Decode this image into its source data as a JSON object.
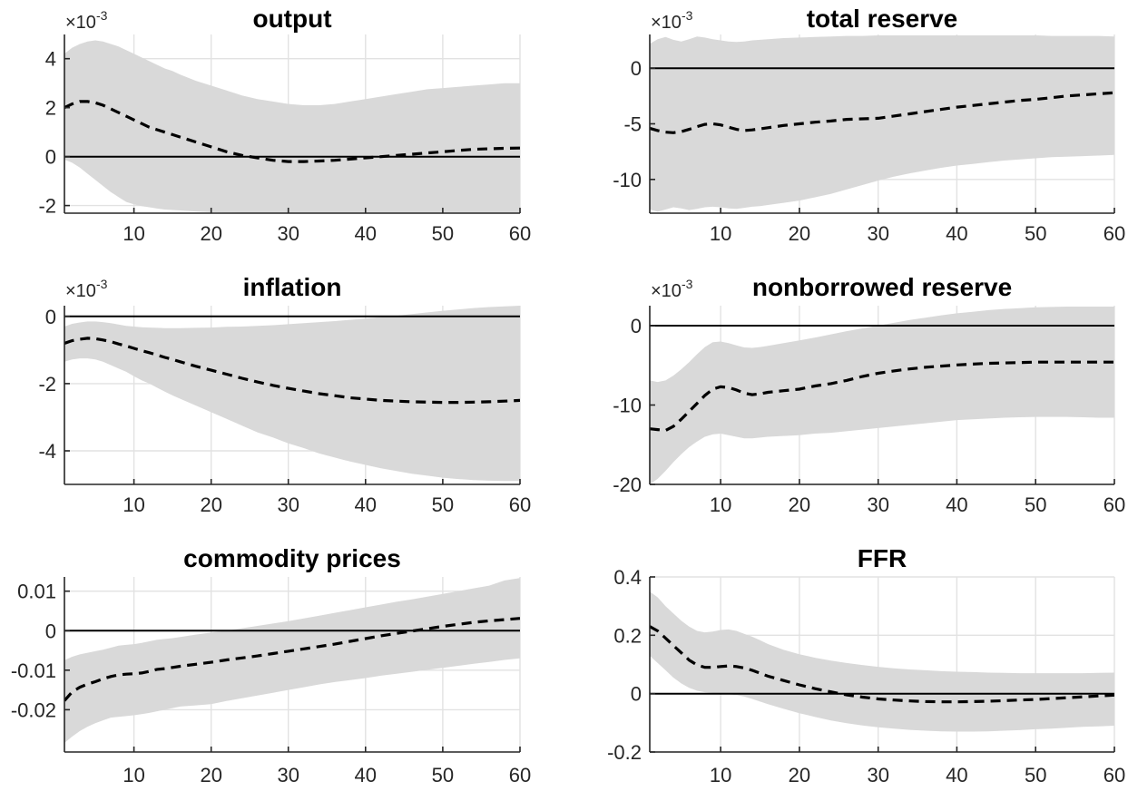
{
  "figure": {
    "background": "#ffffff",
    "band_color": "#d9d9d9",
    "grid_color": "#e2e2e2",
    "axis_color": "#262626",
    "line_color": "#000000",
    "zero_line_color": "#000000"
  },
  "chart_data": [
    {
      "type": "line",
      "title": "output",
      "scale_label": {
        "base": "×10",
        "exponent": "-3"
      },
      "xlim": [
        1,
        60
      ],
      "ylim": [
        -2.31,
        4.99
      ],
      "xticks": [
        10,
        20,
        30,
        40,
        50,
        60
      ],
      "yticks": {
        "values": [
          4,
          2,
          0,
          -2
        ],
        "labels": [
          "4",
          "2",
          "0",
          "-2"
        ]
      },
      "zero_line": true,
      "grid": true,
      "x": [
        1,
        2,
        3,
        4,
        5,
        6,
        7,
        8,
        9,
        10,
        11,
        12,
        13,
        14,
        15,
        16,
        18,
        20,
        22,
        24,
        26,
        28,
        30,
        32,
        34,
        36,
        38,
        40,
        42,
        44,
        46,
        48,
        50,
        52,
        54,
        56,
        58,
        60
      ],
      "median": [
        2.0,
        2.15,
        2.25,
        2.25,
        2.2,
        2.1,
        1.95,
        1.8,
        1.65,
        1.5,
        1.35,
        1.2,
        1.1,
        1.0,
        0.9,
        0.8,
        0.6,
        0.4,
        0.2,
        0.05,
        -0.05,
        -0.15,
        -0.2,
        -0.2,
        -0.18,
        -0.15,
        -0.1,
        -0.05,
        0.0,
        0.05,
        0.1,
        0.15,
        0.2,
        0.25,
        0.3,
        0.32,
        0.34,
        0.35
      ],
      "band_upper": [
        4.2,
        4.45,
        4.6,
        4.7,
        4.75,
        4.7,
        4.6,
        4.5,
        4.35,
        4.2,
        4.05,
        3.9,
        3.75,
        3.6,
        3.5,
        3.35,
        3.1,
        2.9,
        2.7,
        2.5,
        2.35,
        2.25,
        2.15,
        2.1,
        2.1,
        2.15,
        2.25,
        2.35,
        2.45,
        2.55,
        2.65,
        2.75,
        2.8,
        2.85,
        2.9,
        2.95,
        3.0,
        3.0
      ],
      "band_lower": [
        -0.12,
        -0.25,
        -0.45,
        -0.7,
        -0.95,
        -1.2,
        -1.45,
        -1.65,
        -1.85,
        -1.95,
        -2.02,
        -2.07,
        -2.12,
        -2.16,
        -2.18,
        -2.2,
        -2.24,
        -2.27,
        -2.28,
        -2.29,
        -2.29,
        -2.3,
        -2.3,
        -2.3,
        -2.3,
        -2.3,
        -2.3,
        -2.3,
        -2.3,
        -2.3,
        -2.3,
        -2.3,
        -2.3,
        -2.3,
        -2.3,
        -2.3,
        -2.3,
        -2.3
      ]
    },
    {
      "type": "line",
      "title": "total reserve",
      "scale_label": {
        "base": "×10",
        "exponent": "-3"
      },
      "xlim": [
        1,
        60
      ],
      "ylim": [
        -13.03,
        3.03
      ],
      "xticks": [
        10,
        20,
        30,
        40,
        50,
        60
      ],
      "yticks": {
        "values": [
          0,
          -5,
          -10
        ],
        "labels": [
          "0",
          "-5",
          "-10"
        ]
      },
      "zero_line": true,
      "grid": true,
      "x": [
        1,
        2,
        3,
        4,
        5,
        6,
        7,
        8,
        9,
        10,
        11,
        12,
        13,
        14,
        15,
        16,
        18,
        20,
        22,
        24,
        26,
        28,
        30,
        32,
        34,
        36,
        38,
        40,
        42,
        44,
        46,
        48,
        50,
        52,
        54,
        56,
        58,
        60
      ],
      "median": [
        -5.4,
        -5.6,
        -5.75,
        -5.8,
        -5.7,
        -5.5,
        -5.25,
        -5.05,
        -5.0,
        -5.1,
        -5.3,
        -5.5,
        -5.6,
        -5.55,
        -5.45,
        -5.35,
        -5.15,
        -5.0,
        -4.85,
        -4.75,
        -4.6,
        -4.55,
        -4.5,
        -4.3,
        -4.1,
        -3.9,
        -3.7,
        -3.5,
        -3.35,
        -3.2,
        -3.05,
        -2.9,
        -2.8,
        -2.65,
        -2.5,
        -2.4,
        -2.3,
        -2.2
      ],
      "band_upper": [
        2.2,
        2.6,
        2.8,
        2.55,
        2.4,
        2.6,
        2.85,
        2.75,
        2.6,
        2.5,
        2.4,
        2.35,
        2.4,
        2.5,
        2.55,
        2.6,
        2.7,
        2.75,
        2.8,
        2.85,
        2.9,
        2.9,
        2.95,
        2.95,
        2.95,
        2.95,
        2.95,
        2.95,
        2.95,
        2.95,
        2.95,
        2.95,
        2.95,
        2.9,
        2.9,
        2.9,
        2.9,
        2.85
      ],
      "band_lower": [
        -12.7,
        -12.9,
        -12.7,
        -12.5,
        -12.6,
        -12.75,
        -12.65,
        -12.5,
        -12.45,
        -12.5,
        -12.6,
        -12.65,
        -12.55,
        -12.45,
        -12.4,
        -12.3,
        -12.1,
        -11.9,
        -11.6,
        -11.3,
        -10.9,
        -10.5,
        -10.1,
        -9.75,
        -9.45,
        -9.2,
        -8.95,
        -8.75,
        -8.6,
        -8.45,
        -8.3,
        -8.2,
        -8.1,
        -8.0,
        -7.95,
        -7.9,
        -7.85,
        -7.8
      ]
    },
    {
      "type": "line",
      "title": "inflation",
      "scale_label": {
        "base": "×10",
        "exponent": "-3"
      },
      "xlim": [
        1,
        60
      ],
      "ylim": [
        -5.0,
        0.32
      ],
      "xticks": [
        10,
        20,
        30,
        40,
        50,
        60
      ],
      "yticks": {
        "values": [
          0,
          -2,
          -4
        ],
        "labels": [
          "0",
          "-2",
          "-4"
        ]
      },
      "zero_line": true,
      "grid": true,
      "x": [
        1,
        2,
        3,
        4,
        5,
        6,
        7,
        8,
        9,
        10,
        11,
        12,
        13,
        14,
        15,
        16,
        18,
        20,
        22,
        24,
        26,
        28,
        30,
        32,
        34,
        36,
        38,
        40,
        42,
        44,
        46,
        48,
        50,
        52,
        54,
        56,
        58,
        60
      ],
      "median": [
        -0.8,
        -0.72,
        -0.68,
        -0.65,
        -0.66,
        -0.7,
        -0.75,
        -0.82,
        -0.88,
        -0.95,
        -1.02,
        -1.08,
        -1.15,
        -1.22,
        -1.28,
        -1.35,
        -1.48,
        -1.6,
        -1.72,
        -1.84,
        -1.95,
        -2.05,
        -2.14,
        -2.22,
        -2.3,
        -2.36,
        -2.42,
        -2.46,
        -2.5,
        -2.52,
        -2.54,
        -2.55,
        -2.56,
        -2.56,
        -2.55,
        -2.54,
        -2.52,
        -2.5
      ],
      "band_upper": [
        -0.3,
        -0.22,
        -0.18,
        -0.15,
        -0.15,
        -0.17,
        -0.2,
        -0.24,
        -0.28,
        -0.3,
        -0.32,
        -0.33,
        -0.34,
        -0.35,
        -0.35,
        -0.35,
        -0.34,
        -0.33,
        -0.31,
        -0.3,
        -0.28,
        -0.26,
        -0.23,
        -0.2,
        -0.17,
        -0.14,
        -0.1,
        -0.06,
        -0.02,
        0.02,
        0.07,
        0.12,
        0.17,
        0.21,
        0.25,
        0.28,
        0.3,
        0.32
      ],
      "band_lower": [
        -1.35,
        -1.28,
        -1.25,
        -1.25,
        -1.28,
        -1.35,
        -1.45,
        -1.55,
        -1.65,
        -1.78,
        -1.9,
        -2.0,
        -2.12,
        -2.24,
        -2.35,
        -2.45,
        -2.65,
        -2.85,
        -3.05,
        -3.25,
        -3.45,
        -3.6,
        -3.78,
        -3.92,
        -4.08,
        -4.2,
        -4.32,
        -4.42,
        -4.52,
        -4.6,
        -4.68,
        -4.74,
        -4.8,
        -4.84,
        -4.87,
        -4.89,
        -4.9,
        -4.9
      ]
    },
    {
      "type": "line",
      "title": "nonborrowed reserve",
      "scale_label": {
        "base": "×10",
        "exponent": "-3"
      },
      "xlim": [
        1,
        60
      ],
      "ylim": [
        -20.0,
        2.51
      ],
      "xticks": [
        10,
        20,
        30,
        40,
        50,
        60
      ],
      "yticks": {
        "values": [
          0,
          -10,
          -20
        ],
        "labels": [
          "0",
          "-10",
          "-20"
        ]
      },
      "zero_line": true,
      "grid": true,
      "x": [
        1,
        2,
        3,
        4,
        5,
        6,
        7,
        8,
        9,
        10,
        11,
        12,
        13,
        14,
        15,
        16,
        18,
        20,
        22,
        24,
        26,
        28,
        30,
        32,
        34,
        36,
        38,
        40,
        42,
        44,
        46,
        48,
        50,
        52,
        54,
        56,
        58,
        60
      ],
      "median": [
        -13.0,
        -13.1,
        -13.2,
        -12.7,
        -11.8,
        -10.8,
        -9.8,
        -8.8,
        -8.0,
        -7.7,
        -7.8,
        -8.1,
        -8.5,
        -8.7,
        -8.6,
        -8.4,
        -8.2,
        -8.0,
        -7.6,
        -7.3,
        -6.9,
        -6.4,
        -6.0,
        -5.7,
        -5.45,
        -5.25,
        -5.1,
        -4.95,
        -4.85,
        -4.75,
        -4.7,
        -4.65,
        -4.6,
        -4.6,
        -4.6,
        -4.6,
        -4.6,
        -4.6
      ],
      "band_upper": [
        -6.9,
        -7.1,
        -6.9,
        -6.3,
        -5.5,
        -4.6,
        -3.6,
        -2.7,
        -2.1,
        -2.0,
        -2.2,
        -2.5,
        -2.75,
        -2.8,
        -2.7,
        -2.55,
        -2.2,
        -1.85,
        -1.5,
        -1.1,
        -0.7,
        -0.35,
        0.0,
        0.35,
        0.7,
        1.0,
        1.3,
        1.55,
        1.75,
        1.95,
        2.1,
        2.2,
        2.3,
        2.35,
        2.4,
        2.4,
        2.4,
        2.4
      ],
      "band_lower": [
        -20.0,
        -19.3,
        -18.3,
        -17.2,
        -16.2,
        -15.3,
        -14.6,
        -14.0,
        -13.7,
        -13.6,
        -13.8,
        -14.0,
        -14.2,
        -14.2,
        -14.1,
        -14.0,
        -13.9,
        -13.8,
        -13.6,
        -13.5,
        -13.3,
        -13.1,
        -12.9,
        -12.7,
        -12.5,
        -12.3,
        -12.1,
        -11.9,
        -11.8,
        -11.7,
        -11.6,
        -11.55,
        -11.5,
        -11.5,
        -11.5,
        -11.55,
        -11.6,
        -11.6
      ]
    },
    {
      "type": "line",
      "title": "commodity prices",
      "scale_label": null,
      "xlim": [
        1,
        60
      ],
      "ylim": [
        -0.0307,
        0.0136
      ],
      "xticks": [
        10,
        20,
        30,
        40,
        50,
        60
      ],
      "yticks": {
        "values": [
          0.01,
          0,
          -0.01,
          -0.02
        ],
        "labels": [
          "0.01",
          "0",
          "-0.01",
          "-0.02"
        ]
      },
      "zero_line": true,
      "grid": true,
      "x": [
        1,
        2,
        3,
        4,
        5,
        6,
        7,
        8,
        9,
        10,
        11,
        12,
        13,
        14,
        15,
        16,
        18,
        20,
        22,
        24,
        26,
        28,
        30,
        32,
        34,
        36,
        38,
        40,
        42,
        44,
        46,
        48,
        50,
        52,
        54,
        56,
        58,
        60
      ],
      "median": [
        -0.0177,
        -0.0155,
        -0.0143,
        -0.0135,
        -0.0129,
        -0.0122,
        -0.0116,
        -0.0112,
        -0.011,
        -0.0109,
        -0.0107,
        -0.0103,
        -0.0098,
        -0.0096,
        -0.0093,
        -0.009,
        -0.0085,
        -0.008,
        -0.0074,
        -0.0069,
        -0.0064,
        -0.0058,
        -0.0052,
        -0.0046,
        -0.004,
        -0.0034,
        -0.0027,
        -0.002,
        -0.0013,
        -0.0007,
        -0.0001,
        0.0005,
        0.0011,
        0.0016,
        0.0021,
        0.0025,
        0.0028,
        0.0031
      ],
      "band_upper": [
        -0.0075,
        -0.0066,
        -0.006,
        -0.0056,
        -0.0052,
        -0.0048,
        -0.0043,
        -0.0038,
        -0.0036,
        -0.0034,
        -0.0031,
        -0.0027,
        -0.0023,
        -0.0021,
        -0.0019,
        -0.0016,
        -0.001,
        -0.0005,
        0.0,
        0.0006,
        0.0012,
        0.0018,
        0.0024,
        0.0031,
        0.0038,
        0.0045,
        0.0052,
        0.0059,
        0.0066,
        0.0073,
        0.0079,
        0.0086,
        0.0093,
        0.01,
        0.0107,
        0.0114,
        0.0127,
        0.0133
      ],
      "band_lower": [
        -0.0284,
        -0.0268,
        -0.0254,
        -0.0243,
        -0.0234,
        -0.0227,
        -0.022,
        -0.0218,
        -0.0216,
        -0.0214,
        -0.0211,
        -0.0208,
        -0.0204,
        -0.02,
        -0.0196,
        -0.0192,
        -0.0189,
        -0.0186,
        -0.0178,
        -0.0171,
        -0.0164,
        -0.0157,
        -0.015,
        -0.0143,
        -0.0136,
        -0.013,
        -0.0125,
        -0.012,
        -0.0114,
        -0.0109,
        -0.0104,
        -0.0099,
        -0.0094,
        -0.0089,
        -0.0084,
        -0.0079,
        -0.0074,
        -0.007
      ]
    },
    {
      "type": "line",
      "title": "FFR",
      "scale_label": null,
      "xlim": [
        1,
        60
      ],
      "ylim": [
        -0.2,
        0.4
      ],
      "xticks": [
        10,
        20,
        30,
        40,
        50,
        60
      ],
      "yticks": {
        "values": [
          0.4,
          0.2,
          0,
          -0.2
        ],
        "labels": [
          "0.4",
          "0.2",
          "0",
          "-0.2"
        ]
      },
      "zero_line": true,
      "grid": true,
      "x": [
        1,
        2,
        3,
        4,
        5,
        6,
        7,
        8,
        9,
        10,
        11,
        12,
        13,
        14,
        15,
        16,
        18,
        20,
        22,
        24,
        26,
        28,
        30,
        32,
        34,
        36,
        38,
        40,
        42,
        44,
        46,
        48,
        50,
        52,
        54,
        56,
        58,
        60
      ],
      "median": [
        0.23,
        0.215,
        0.19,
        0.165,
        0.14,
        0.115,
        0.098,
        0.09,
        0.09,
        0.093,
        0.095,
        0.093,
        0.088,
        0.08,
        0.07,
        0.06,
        0.045,
        0.03,
        0.017,
        0.006,
        -0.004,
        -0.012,
        -0.018,
        -0.022,
        -0.025,
        -0.027,
        -0.028,
        -0.028,
        -0.027,
        -0.026,
        -0.024,
        -0.022,
        -0.02,
        -0.017,
        -0.014,
        -0.011,
        -0.008,
        -0.005
      ],
      "band_upper": [
        0.35,
        0.33,
        0.3,
        0.275,
        0.25,
        0.23,
        0.215,
        0.21,
        0.213,
        0.218,
        0.22,
        0.215,
        0.205,
        0.195,
        0.183,
        0.17,
        0.15,
        0.135,
        0.123,
        0.113,
        0.105,
        0.098,
        0.092,
        0.087,
        0.083,
        0.08,
        0.077,
        0.075,
        0.074,
        0.072,
        0.071,
        0.07,
        0.07,
        0.07,
        0.07,
        0.07,
        0.071,
        0.072
      ],
      "band_lower": [
        0.13,
        0.105,
        0.08,
        0.055,
        0.035,
        0.02,
        0.01,
        0.005,
        0.002,
        0.0,
        -0.002,
        -0.005,
        -0.01,
        -0.018,
        -0.027,
        -0.036,
        -0.052,
        -0.067,
        -0.08,
        -0.092,
        -0.101,
        -0.109,
        -0.115,
        -0.12,
        -0.124,
        -0.127,
        -0.129,
        -0.13,
        -0.13,
        -0.129,
        -0.127,
        -0.125,
        -0.122,
        -0.12,
        -0.117,
        -0.114,
        -0.112,
        -0.11
      ]
    }
  ]
}
